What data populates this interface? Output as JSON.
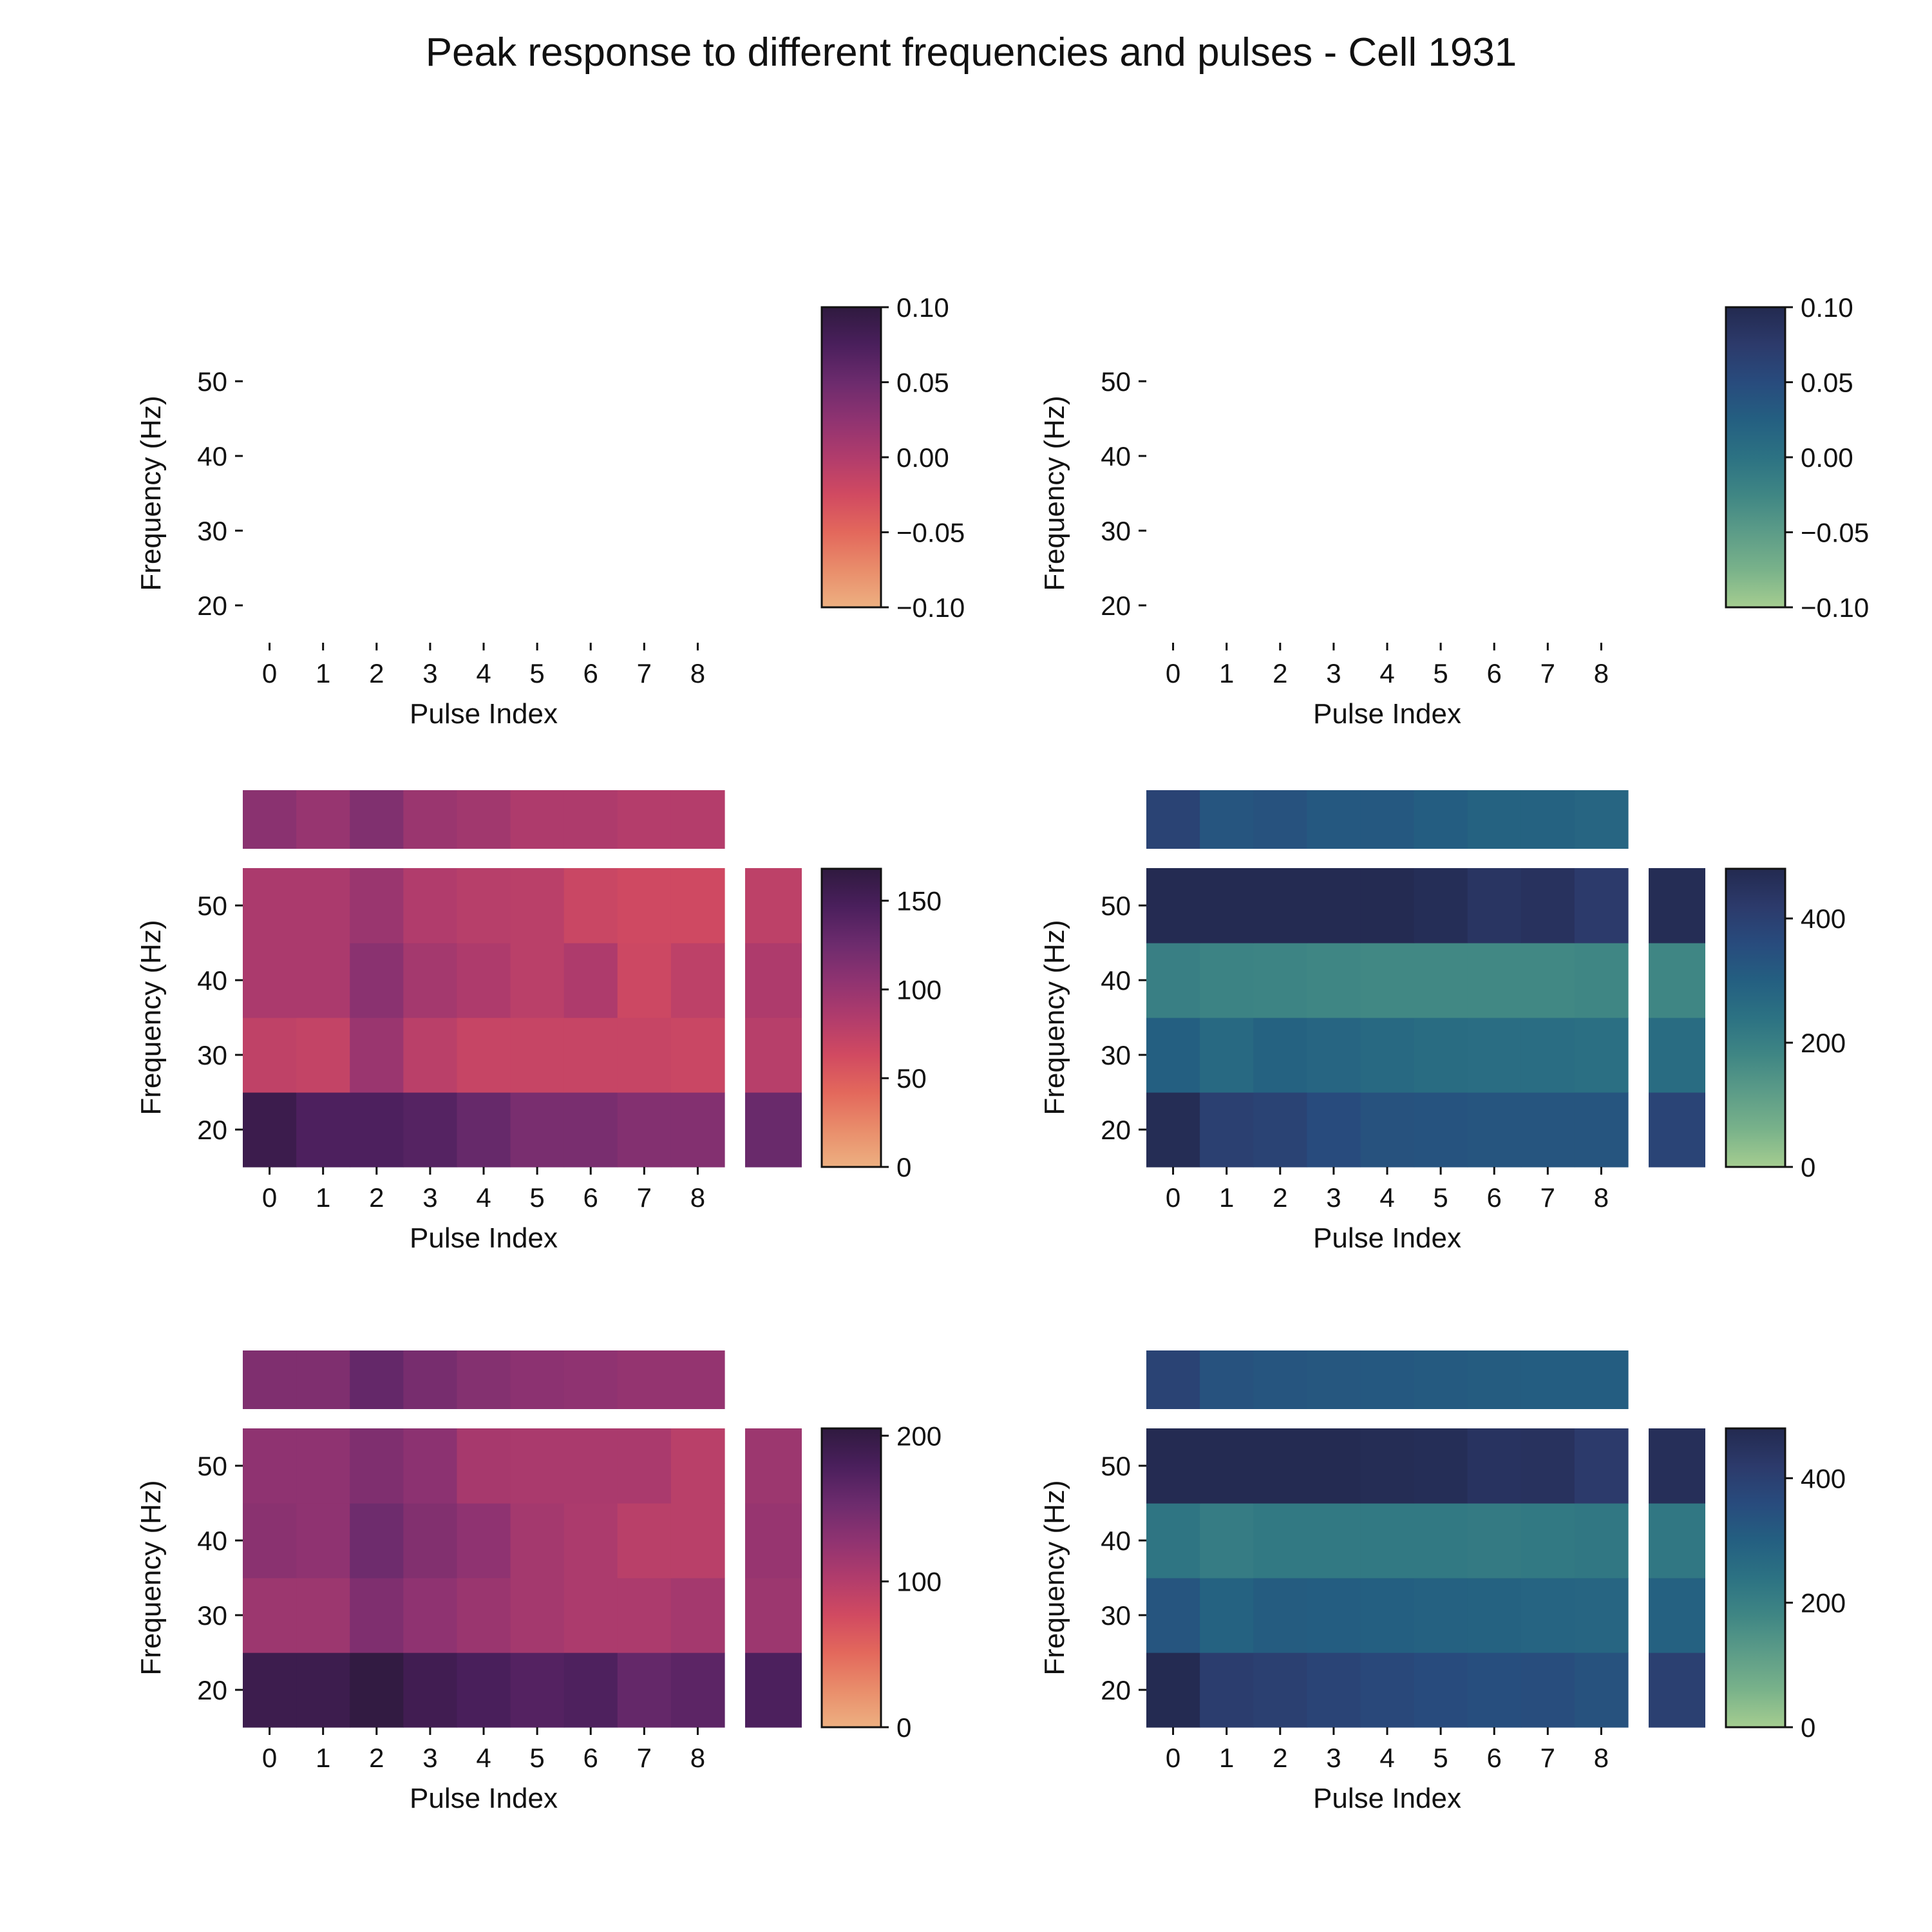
{
  "figure": {
    "title": "Peak response to different frequencies and pulses - Cell 1931"
  },
  "chart_data": [
    {
      "type": "heatmap",
      "colormap": "flare",
      "x_label": "Pulse Index",
      "y_label": "Frequency (Hz)",
      "x_ticks": [
        "0",
        "1",
        "2",
        "3",
        "4",
        "5",
        "6",
        "7",
        "8"
      ],
      "y_ticks": [
        "20",
        "30",
        "40",
        "50"
      ],
      "values": null,
      "marginal_top": null,
      "marginal_right": null,
      "colorbar": {
        "min": -0.1,
        "max": 0.1,
        "ticks": [
          "0.10",
          "0.05",
          "0.00",
          "−0.05",
          "−0.10"
        ]
      }
    },
    {
      "type": "heatmap",
      "colormap": "crest",
      "x_label": "Pulse Index",
      "y_label": "Frequency (Hz)",
      "x_ticks": [
        "0",
        "1",
        "2",
        "3",
        "4",
        "5",
        "6",
        "7",
        "8"
      ],
      "y_ticks": [
        "20",
        "30",
        "40",
        "50"
      ],
      "values": null,
      "marginal_top": null,
      "marginal_right": null,
      "colorbar": {
        "min": -0.1,
        "max": 0.1,
        "ticks": [
          "0.10",
          "0.05",
          "0.00",
          "−0.05",
          "−0.10"
        ]
      }
    },
    {
      "type": "heatmap",
      "colormap": "flare",
      "x_label": "Pulse Index",
      "y_label": "Frequency (Hz)",
      "x_ticks": [
        "0",
        "1",
        "2",
        "3",
        "4",
        "5",
        "6",
        "7",
        "8"
      ],
      "y_ticks": [
        "20",
        "30",
        "40",
        "50"
      ],
      "values": [
        [
          158,
          145,
          145,
          140,
          130,
          118,
          118,
          112,
          112
        ],
        [
          75,
          72,
          98,
          78,
          70,
          70,
          70,
          70,
          68
        ],
        [
          88,
          88,
          108,
          92,
          86,
          78,
          86,
          66,
          76
        ],
        [
          88,
          88,
          98,
          84,
          80,
          78,
          68,
          64,
          64
        ]
      ],
      "marginal_top": [
        108,
        100,
        114,
        98,
        94,
        86,
        86,
        82,
        82
      ],
      "marginal_right": [
        128,
        80,
        86,
        76
      ],
      "colorbar": {
        "min": 0,
        "max": 168,
        "ticks": [
          "0",
          "50",
          "100",
          "150"
        ]
      }
    },
    {
      "type": "heatmap",
      "colormap": "crest",
      "x_label": "Pulse Index",
      "y_label": "Frequency (Hz)",
      "x_ticks": [
        "0",
        "1",
        "2",
        "3",
        "4",
        "5",
        "6",
        "7",
        "8"
      ],
      "y_ticks": [
        "20",
        "30",
        "40",
        "50"
      ],
      "values": [
        [
          470,
          400,
          390,
          360,
          340,
          335,
          330,
          330,
          330
        ],
        [
          300,
          270,
          290,
          280,
          270,
          260,
          255,
          255,
          250
        ],
        [
          200,
          190,
          185,
          180,
          175,
          175,
          175,
          175,
          180
        ],
        [
          475,
          475,
          475,
          475,
          475,
          465,
          440,
          450,
          420
        ]
      ],
      "marginal_top": [
        390,
        330,
        340,
        320,
        320,
        305,
        290,
        290,
        280
      ],
      "marginal_right": [
        385,
        260,
        180,
        470
      ],
      "colorbar": {
        "min": 0,
        "max": 480,
        "ticks": [
          "0",
          "200",
          "400"
        ]
      }
    },
    {
      "type": "heatmap",
      "colormap": "flare",
      "x_label": "Pulse Index",
      "y_label": "Frequency (Hz)",
      "x_ticks": [
        "0",
        "1",
        "2",
        "3",
        "4",
        "5",
        "6",
        "7",
        "8"
      ],
      "y_ticks": [
        "20",
        "30",
        "40",
        "50"
      ],
      "values": [
        [
          192,
          192,
          202,
          188,
          180,
          172,
          176,
          160,
          166
        ],
        [
          118,
          118,
          140,
          128,
          120,
          112,
          106,
          106,
          112
        ],
        [
          132,
          128,
          152,
          138,
          128,
          112,
          106,
          96,
          96
        ],
        [
          128,
          128,
          140,
          130,
          110,
          108,
          108,
          108,
          96
        ]
      ],
      "marginal_top": [
        140,
        140,
        160,
        146,
        136,
        130,
        128,
        124,
        124
      ],
      "marginal_right": [
        178,
        118,
        122,
        118
      ],
      "colorbar": {
        "min": 0,
        "max": 205,
        "ticks": [
          "0",
          "100",
          "200"
        ]
      }
    },
    {
      "type": "heatmap",
      "colormap": "crest",
      "x_label": "Pulse Index",
      "y_label": "Frequency (Hz)",
      "x_ticks": [
        "0",
        "1",
        "2",
        "3",
        "4",
        "5",
        "6",
        "7",
        "8"
      ],
      "y_ticks": [
        "20",
        "30",
        "40",
        "50"
      ],
      "values": [
        [
          475,
          410,
          400,
          385,
          370,
          360,
          350,
          355,
          340
        ],
        [
          330,
          290,
          310,
          305,
          300,
          295,
          290,
          285,
          280
        ],
        [
          230,
          210,
          220,
          220,
          220,
          220,
          215,
          220,
          225
        ],
        [
          475,
          475,
          475,
          475,
          470,
          465,
          445,
          450,
          420
        ]
      ],
      "marginal_top": [
        390,
        340,
        330,
        325,
        320,
        315,
        310,
        305,
        305
      ],
      "marginal_right": [
        400,
        295,
        225,
        460
      ],
      "colorbar": {
        "min": 0,
        "max": 480,
        "ticks": [
          "0",
          "200",
          "400"
        ]
      }
    }
  ]
}
